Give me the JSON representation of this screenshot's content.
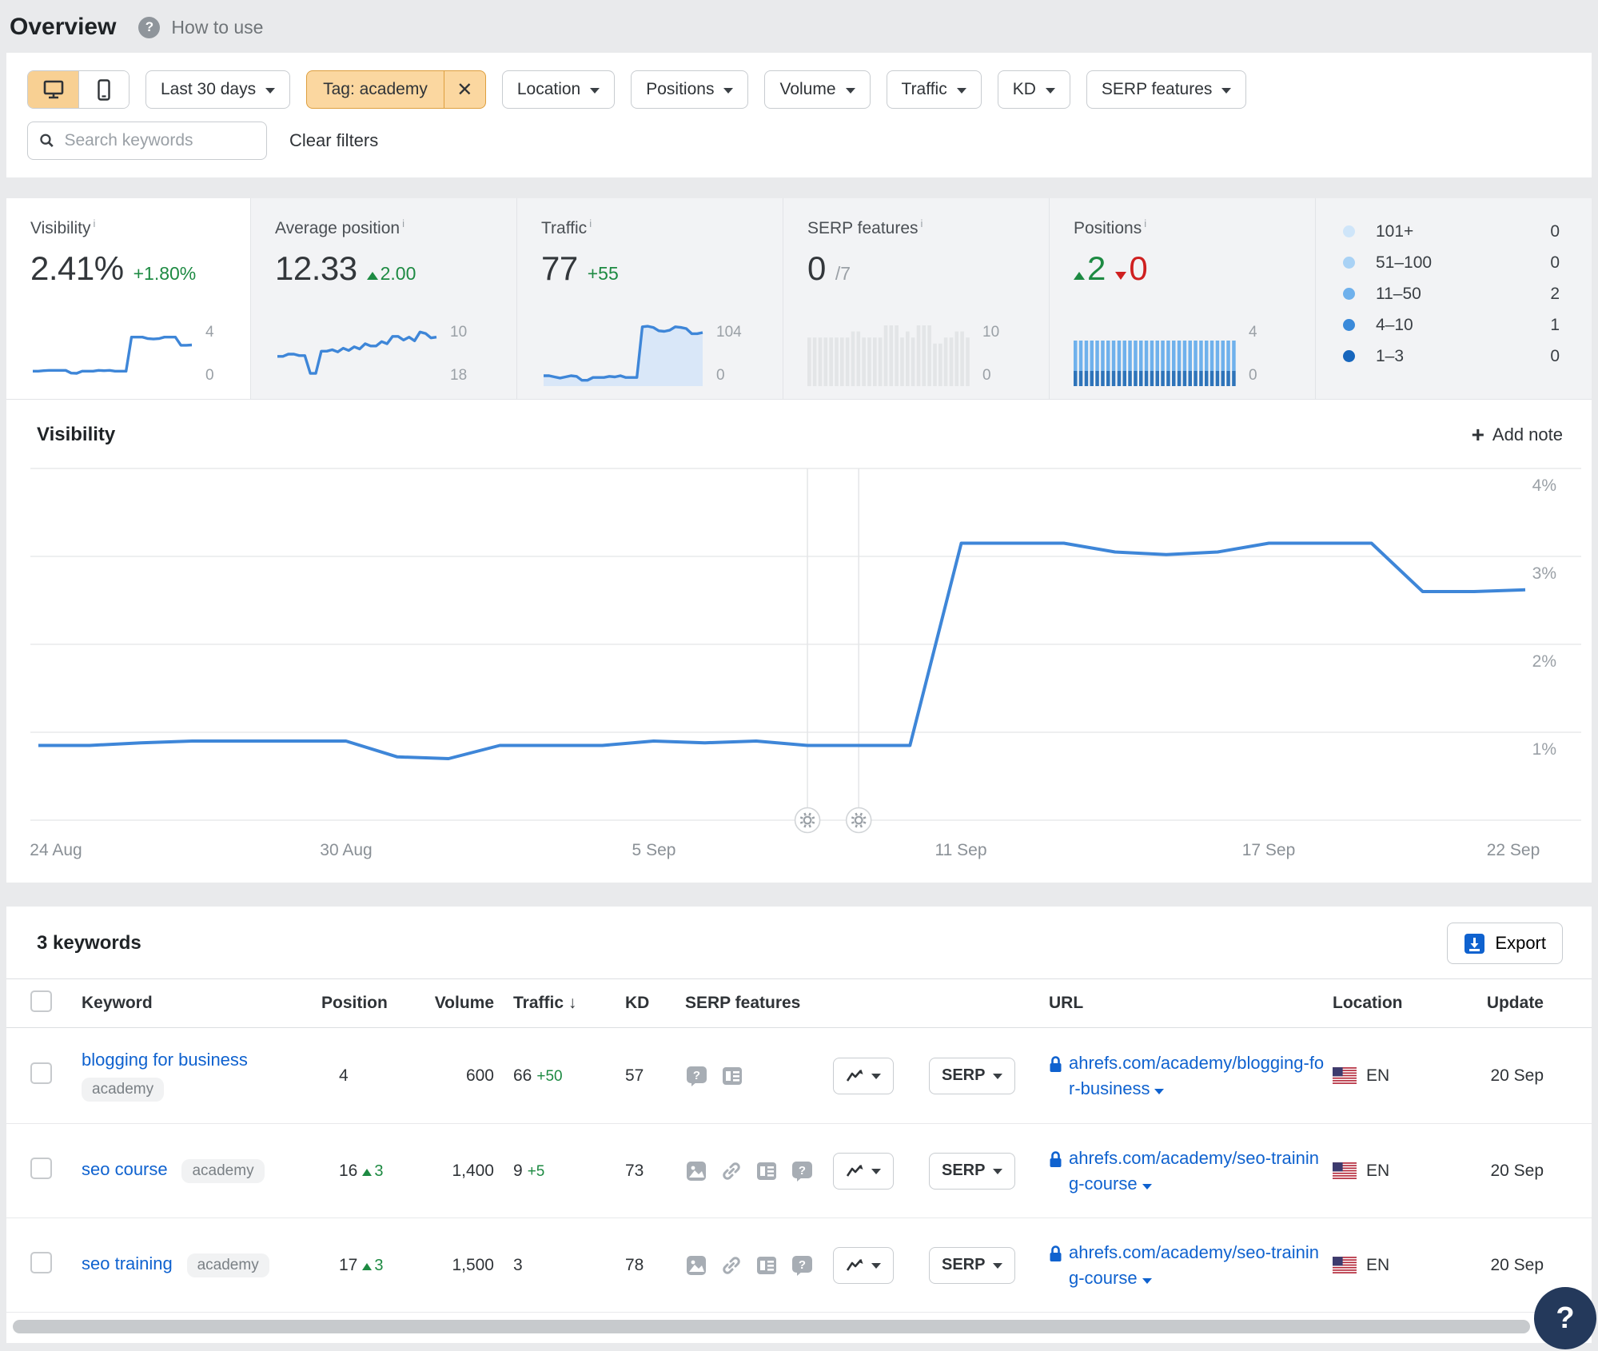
{
  "header": {
    "title": "Overview",
    "help": "How to use"
  },
  "icons": {
    "info": "i",
    "close": "✕",
    "plus": "+",
    "question": "?",
    "sort_desc": "↓"
  },
  "filters": {
    "device_active": "desktop",
    "date_range": "Last 30 days",
    "tag_chip": "Tag: academy",
    "dropdowns": [
      "Location",
      "Positions",
      "Volume",
      "Traffic",
      "KD",
      "SERP features"
    ],
    "search_placeholder": "Search keywords",
    "clear_label": "Clear filters"
  },
  "metrics": {
    "visibility": {
      "label": "Visibility",
      "value": "2.41%",
      "delta": "+1.80%",
      "axis_top": "4",
      "axis_bottom": "0"
    },
    "avg_position": {
      "label": "Average position",
      "value": "12.33",
      "delta": "2.00",
      "axis_top": "10",
      "axis_bottom": "18",
      "spark": [
        14.3,
        14.3,
        14.0,
        14.0,
        14.2,
        14.2,
        16.6,
        16.6,
        13.6,
        13.6,
        13.4,
        13.7,
        13.2,
        13.5,
        13.0,
        13.3,
        12.6,
        12.9,
        12.9,
        12.3,
        12.6,
        11.6,
        11.6,
        12.1,
        11.7,
        12.2,
        11.0,
        11.2,
        11.8,
        11.7
      ]
    },
    "traffic": {
      "label": "Traffic",
      "value": "77",
      "delta": "+55",
      "axis_top": "104",
      "axis_bottom": "0",
      "spark": [
        14,
        14,
        12,
        10,
        12,
        14,
        13,
        6,
        6,
        11,
        11,
        11,
        13,
        12,
        14,
        11,
        11,
        11,
        100,
        101,
        99,
        93,
        92,
        94,
        100,
        99,
        97,
        88,
        88,
        90
      ]
    },
    "serp_features": {
      "label": "SERP features",
      "value": "0",
      "suffix": "/7",
      "axis_top": "10",
      "axis_bottom": "0",
      "bars": [
        8,
        8,
        8,
        8,
        8,
        8,
        8,
        8,
        9,
        9,
        8,
        8,
        8,
        8,
        10,
        10,
        10,
        8,
        9,
        8,
        10,
        10,
        10,
        7,
        7,
        8,
        8,
        9,
        9,
        8
      ]
    },
    "positions": {
      "label": "Positions",
      "up": "2",
      "down": "0",
      "axis_top": "4",
      "axis_bottom": "0",
      "stack": {
        "count": 30,
        "bottom_value": 1,
        "top_value": 2,
        "max": 4,
        "bottom_color": "#2e74ba",
        "top_color": "#6fb1ec"
      }
    },
    "accent_colors": {
      "filter_active_bg": "#fbd7a0",
      "filter_active_border": "#dd9f3f",
      "link_blue": "#0f62cf",
      "chart_blue": "#3e86d8",
      "up_green": "#1d8a42",
      "down_red": "#cf2020"
    }
  },
  "positions_legend": [
    {
      "range": "101+",
      "count": "0",
      "color": "#cfe5f9"
    },
    {
      "range": "51–100",
      "count": "0",
      "color": "#a9d2f5"
    },
    {
      "range": "11–50",
      "count": "2",
      "color": "#6fb1ec"
    },
    {
      "range": "4–10",
      "count": "1",
      "color": "#3a8ada"
    },
    {
      "range": "1–3",
      "count": "0",
      "color": "#1766bd"
    }
  ],
  "chart": {
    "section_title": "Visibility",
    "add_note": "Add note"
  },
  "chart_data": {
    "type": "line",
    "title": "Visibility",
    "ylabel": "Visibility %",
    "ylim": [
      0,
      4
    ],
    "ytick_labels": [
      "1%",
      "2%",
      "3%",
      "4%"
    ],
    "xtick_labels": [
      "24 Aug",
      "30 Aug",
      "5 Sep",
      "11 Sep",
      "17 Sep",
      "22 Sep"
    ],
    "xtick_indices": [
      0,
      6,
      12,
      18,
      24,
      29
    ],
    "values": [
      0.85,
      0.85,
      0.88,
      0.9,
      0.9,
      0.9,
      0.9,
      0.72,
      0.7,
      0.85,
      0.85,
      0.85,
      0.9,
      0.88,
      0.9,
      0.85,
      0.85,
      0.85,
      3.15,
      3.15,
      3.15,
      3.05,
      3.02,
      3.05,
      3.15,
      3.15,
      3.15,
      2.6,
      2.6,
      2.62
    ],
    "note_indices": [
      15,
      16
    ],
    "grid": true,
    "legend_position": "none"
  },
  "table": {
    "count_label": "3 keywords",
    "export_label": "Export",
    "serp_button_label": "SERP",
    "columns": {
      "keyword": "Keyword",
      "position": "Position",
      "volume": "Volume",
      "traffic": "Traffic",
      "kd": "KD",
      "serp": "SERP features",
      "url": "URL",
      "location": "Location",
      "update": "Update"
    },
    "rows": [
      {
        "keyword": "blogging for business",
        "tag": "academy",
        "position": "4",
        "pos_delta": "",
        "volume": "600",
        "traffic": "66",
        "traffic_delta": "+50",
        "kd": "57",
        "url": "ahrefs.com/academy/blogging-for-business",
        "location": "EN",
        "update": "20 Sep"
      },
      {
        "keyword": "seo course",
        "tag": "academy",
        "position": "16",
        "pos_delta": "3",
        "volume": "1,400",
        "traffic": "9",
        "traffic_delta": "+5",
        "kd": "73",
        "url": "ahrefs.com/academy/seo-training-course",
        "location": "EN",
        "update": "20 Sep"
      },
      {
        "keyword": "seo training",
        "tag": "academy",
        "position": "17",
        "pos_delta": "3",
        "volume": "1,500",
        "traffic": "3",
        "traffic_delta": "",
        "kd": "78",
        "url": "ahrefs.com/academy/seo-training-course",
        "location": "EN",
        "update": "20 Sep"
      }
    ]
  }
}
